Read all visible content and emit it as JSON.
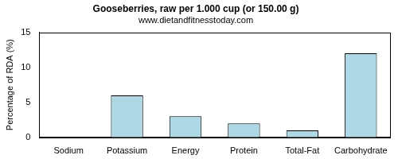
{
  "chart_data": {
    "type": "bar",
    "title": "Gooseberries, raw per 1.000 cup (or 150.00 g)",
    "subtitle": "www.dietandfitnesstoday.com",
    "y_label": "Percentage of RDA (%)",
    "categories": [
      "Sodium",
      "Potassium",
      "Energy",
      "Protein",
      "Total-Fat",
      "Carbohydrate"
    ],
    "values": [
      0,
      6,
      3,
      2,
      1,
      12
    ],
    "color": "#add8e6",
    "ylim": [
      0,
      15
    ],
    "yticks": [
      0,
      5,
      10,
      15
    ],
    "grid": false
  }
}
